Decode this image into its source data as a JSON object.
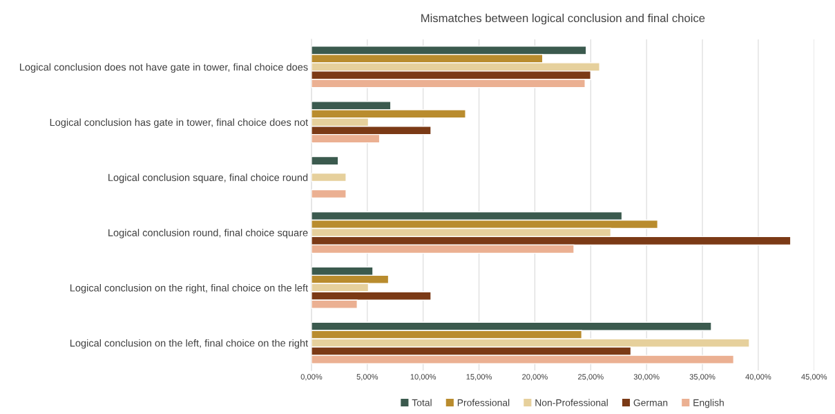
{
  "chart_data": {
    "type": "bar",
    "orientation": "horizontal",
    "title": "Mismatches between logical conclusion and final choice",
    "categories": [
      "Logical conclusion does not have gate in tower, final choice does",
      "Logical conclusion has gate in tower, final choice does not",
      "Logical conclusion square, final choice round",
      "Logical conclusion round, final choice square",
      "Logical conclusion on the right, final choice on the left",
      "Logical conclusion on the left, final choice on the right"
    ],
    "series": [
      {
        "name": "Total",
        "color": "#3b5a4e",
        "values": [
          24.6,
          7.1,
          2.4,
          27.8,
          5.5,
          35.8
        ]
      },
      {
        "name": "Professional",
        "color": "#b98c2e",
        "values": [
          20.7,
          13.8,
          null,
          31.0,
          6.9,
          24.2
        ]
      },
      {
        "name": "Non-Professional",
        "color": "#e6d09c",
        "values": [
          25.8,
          5.1,
          3.1,
          26.8,
          5.1,
          39.2
        ]
      },
      {
        "name": "German",
        "color": "#7b3a16",
        "values": [
          25.0,
          10.7,
          null,
          42.9,
          10.7,
          28.6
        ]
      },
      {
        "name": "English",
        "color": "#ebb092",
        "values": [
          24.5,
          6.1,
          3.1,
          23.5,
          4.1,
          37.8
        ]
      }
    ],
    "xlim": [
      0,
      45
    ],
    "xticks": [
      {
        "value": 0,
        "label": "0,00%"
      },
      {
        "value": 5,
        "label": "5,00%"
      },
      {
        "value": 10,
        "label": "10,00%"
      },
      {
        "value": 15,
        "label": "15,00%"
      },
      {
        "value": 20,
        "label": "20,00%"
      },
      {
        "value": 25,
        "label": "25,00%"
      },
      {
        "value": 30,
        "label": "30,00%"
      },
      {
        "value": 35,
        "label": "35,00%"
      },
      {
        "value": 40,
        "label": "40,00%"
      },
      {
        "value": 45,
        "label": "45,00%"
      }
    ],
    "grid": "x",
    "legend": "bottom"
  }
}
